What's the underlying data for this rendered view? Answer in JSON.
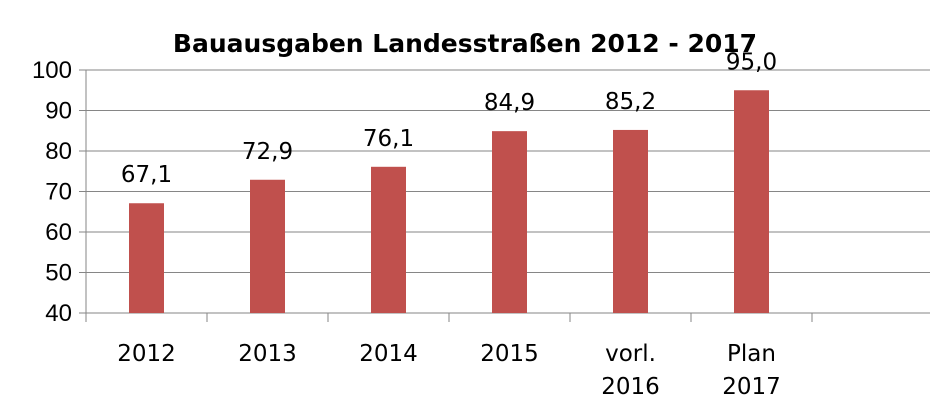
{
  "chart_data": {
    "type": "bar",
    "title": "Bauausgaben Landesstraßen 2012 - 2017",
    "xlabel": "",
    "ylabel": "",
    "categories": [
      [
        "2012"
      ],
      [
        "2013"
      ],
      [
        "2014"
      ],
      [
        "2015"
      ],
      [
        "vorl.",
        "2016"
      ],
      [
        "Plan",
        "2017"
      ]
    ],
    "values": [
      67.1,
      72.9,
      76.1,
      84.9,
      85.2,
      95.0
    ],
    "data_labels": [
      "67,1",
      "72,9",
      "76,1",
      "84,9",
      "85,2",
      "95,0"
    ],
    "ylim": [
      40,
      100
    ],
    "yticks": [
      "40",
      "50",
      "60",
      "70",
      "80",
      "90",
      "100"
    ],
    "bar_color": "#c0504d",
    "gridlines": true,
    "legend": "none"
  }
}
